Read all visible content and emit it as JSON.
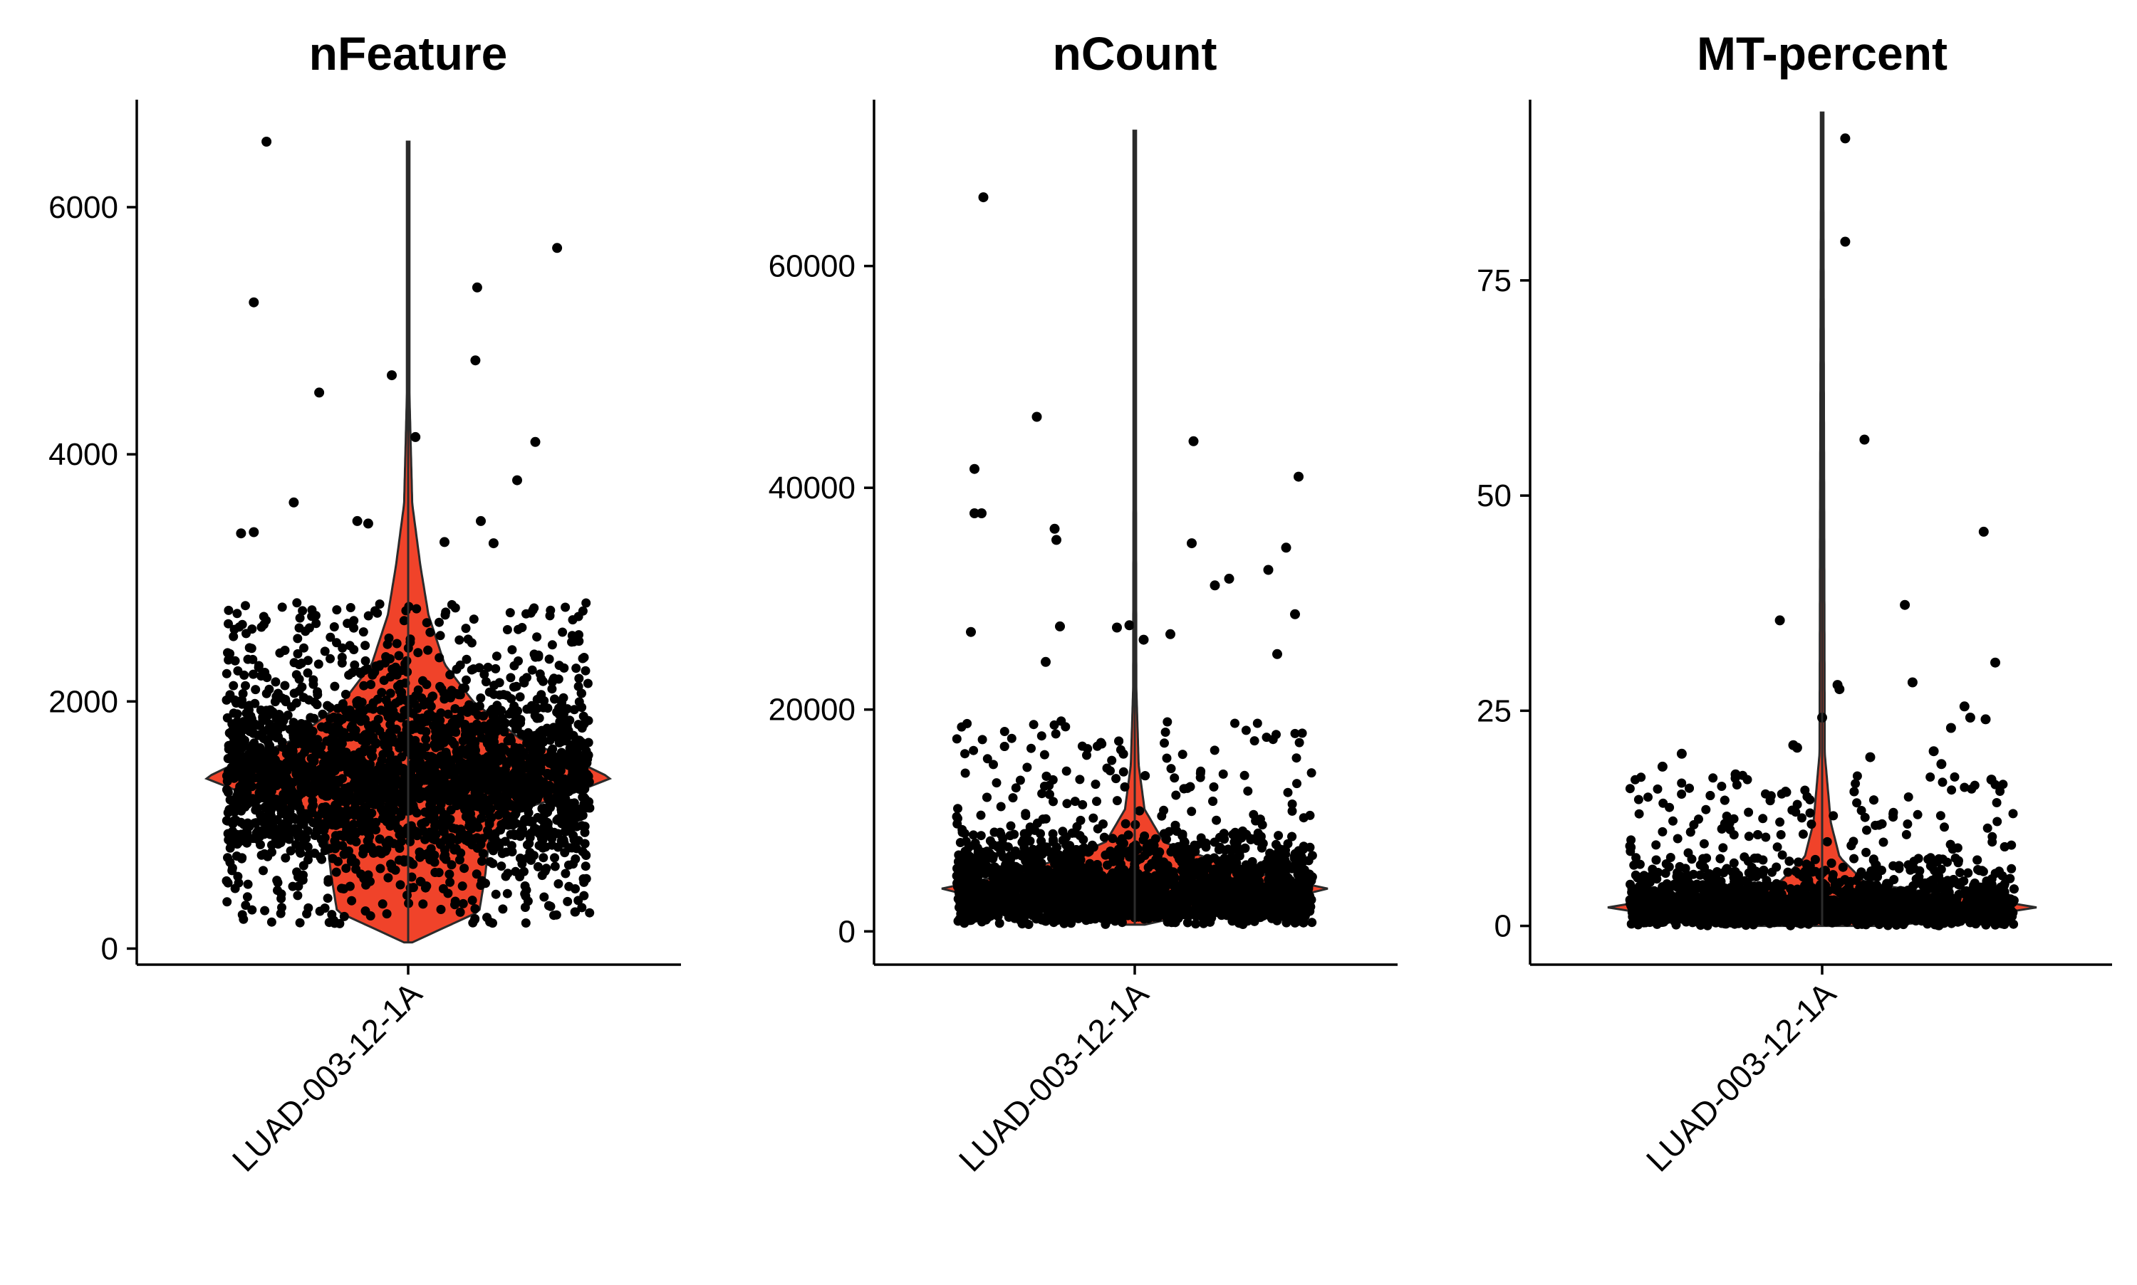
{
  "figure": {
    "colors": {
      "violin_fill": "#F0432A",
      "violin_stroke": "#2b2b2b",
      "points": "#000000",
      "axes": "#000000"
    }
  },
  "chart_data": [
    {
      "type": "violin",
      "title": "nFeature",
      "categories": [
        "LUAD-003-12-1A"
      ],
      "xlabel": "",
      "ylabel": "",
      "ylim": [
        -130,
        6870
      ],
      "yticks": [
        0,
        2000,
        4000,
        6000
      ],
      "tick_labels": [
        "0",
        "2000",
        "4000",
        "6000"
      ],
      "grid": false,
      "legend": "none",
      "summary": {
        "min": 50,
        "max": 6530,
        "mode": 1380,
        "bulk_range": [
          200,
          2800
        ]
      },
      "density": [
        [
          50,
          0.02
        ],
        [
          300,
          0.35
        ],
        [
          600,
          0.38
        ],
        [
          900,
          0.4
        ],
        [
          1100,
          0.5
        ],
        [
          1250,
          0.8
        ],
        [
          1380,
          1.0
        ],
        [
          1500,
          0.85
        ],
        [
          1700,
          0.55
        ],
        [
          2000,
          0.32
        ],
        [
          2300,
          0.18
        ],
        [
          2700,
          0.1
        ],
        [
          3100,
          0.06
        ],
        [
          3600,
          0.02
        ],
        [
          4500,
          0.006
        ],
        [
          6530,
          0.005
        ]
      ],
      "outliers": [
        {
          "x": -0.78,
          "y": 6530
        },
        {
          "x": -0.85,
          "y": 5230
        },
        {
          "x": -0.49,
          "y": 4500
        },
        {
          "x": -0.09,
          "y": 4640
        },
        {
          "x": 0.04,
          "y": 4140
        },
        {
          "x": 0.38,
          "y": 5350
        },
        {
          "x": 0.37,
          "y": 4760
        },
        {
          "x": 0.82,
          "y": 5670
        },
        {
          "x": 0.7,
          "y": 4100
        },
        {
          "x": 0.6,
          "y": 3790
        },
        {
          "x": -0.63,
          "y": 3610
        },
        {
          "x": 0.4,
          "y": 3460
        },
        {
          "x": -0.92,
          "y": 3360
        },
        {
          "x": -0.85,
          "y": 3370
        },
        {
          "x": 0.2,
          "y": 3290
        },
        {
          "x": -0.28,
          "y": 3460
        },
        {
          "x": -0.22,
          "y": 3440
        },
        {
          "x": 0.47,
          "y": 3280
        }
      ]
    },
    {
      "type": "violin",
      "title": "nCount",
      "categories": [
        "LUAD-003-12-1A"
      ],
      "xlabel": "",
      "ylabel": "",
      "ylim": [
        -3000,
        75000
      ],
      "yticks": [
        0,
        20000,
        40000,
        60000
      ],
      "tick_labels": [
        "0",
        "20000",
        "40000",
        "60000"
      ],
      "grid": false,
      "legend": "none",
      "summary": {
        "min": 600,
        "max": 72200,
        "mode": 3800,
        "bulk_range": [
          600,
          9000
        ]
      },
      "density": [
        [
          600,
          0.05
        ],
        [
          2000,
          0.4
        ],
        [
          3800,
          1.0
        ],
        [
          5500,
          0.55
        ],
        [
          8000,
          0.15
        ],
        [
          11000,
          0.05
        ],
        [
          15000,
          0.02
        ],
        [
          22000,
          0.008
        ],
        [
          72200,
          0.004
        ]
      ],
      "outliers": [
        {
          "x": -0.85,
          "y": 66200
        },
        {
          "x": -0.55,
          "y": 46400
        },
        {
          "x": -0.9,
          "y": 41700
        },
        {
          "x": -0.9,
          "y": 37700
        },
        {
          "x": -0.86,
          "y": 37700
        },
        {
          "x": -0.45,
          "y": 36300
        },
        {
          "x": -0.44,
          "y": 35300
        },
        {
          "x": 0.33,
          "y": 44200
        },
        {
          "x": 0.32,
          "y": 35000
        },
        {
          "x": 0.45,
          "y": 31200
        },
        {
          "x": 0.53,
          "y": 31800
        },
        {
          "x": 0.75,
          "y": 32600
        },
        {
          "x": 0.85,
          "y": 34600
        },
        {
          "x": 0.92,
          "y": 41000
        },
        {
          "x": 0.9,
          "y": 28600
        },
        {
          "x": -0.92,
          "y": 27000
        },
        {
          "x": -0.42,
          "y": 27500
        },
        {
          "x": -0.1,
          "y": 27400
        },
        {
          "x": -0.03,
          "y": 27600
        },
        {
          "x": 0.2,
          "y": 26800
        },
        {
          "x": 0.8,
          "y": 25000
        },
        {
          "x": 0.05,
          "y": 26300
        },
        {
          "x": -0.5,
          "y": 24300
        }
      ]
    },
    {
      "type": "violin",
      "title": "MT-percent",
      "categories": [
        "LUAD-003-12-1A"
      ],
      "xlabel": "",
      "ylabel": "",
      "ylim": [
        -4.5,
        96
      ],
      "yticks": [
        0,
        25,
        50,
        75
      ],
      "tick_labels": [
        "0",
        "25",
        "50",
        "75"
      ],
      "grid": false,
      "legend": "none",
      "summary": {
        "min": 0,
        "max": 94.5,
        "mode": 2.2,
        "bulk_range": [
          0,
          8
        ]
      },
      "density": [
        [
          0,
          0.3
        ],
        [
          1,
          0.7
        ],
        [
          2.2,
          1.0
        ],
        [
          3.5,
          0.6
        ],
        [
          5,
          0.2
        ],
        [
          8,
          0.08
        ],
        [
          12,
          0.04
        ],
        [
          20,
          0.012
        ],
        [
          94.5,
          0.005
        ]
      ],
      "outliers": [
        {
          "x": 0.12,
          "y": 91.5
        },
        {
          "x": 0.12,
          "y": 79.5
        },
        {
          "x": 0.22,
          "y": 56.5
        },
        {
          "x": 0.84,
          "y": 45.8
        },
        {
          "x": 0.43,
          "y": 37.3
        },
        {
          "x": -0.22,
          "y": 35.5
        },
        {
          "x": 0.9,
          "y": 30.6
        },
        {
          "x": 0.08,
          "y": 28.0
        },
        {
          "x": 0.09,
          "y": 27.5
        },
        {
          "x": 0.47,
          "y": 28.3
        },
        {
          "x": 0.74,
          "y": 25.5
        },
        {
          "x": 0.67,
          "y": 23.0
        },
        {
          "x": 0.85,
          "y": 24.0
        },
        {
          "x": 0.77,
          "y": 24.2
        },
        {
          "x": 0.0,
          "y": 24.2
        },
        {
          "x": -0.15,
          "y": 21.0
        },
        {
          "x": -0.13,
          "y": 20.7
        },
        {
          "x": -0.73,
          "y": 20.0
        },
        {
          "x": -0.83,
          "y": 18.5
        },
        {
          "x": 0.25,
          "y": 19.6
        },
        {
          "x": 0.58,
          "y": 20.3
        },
        {
          "x": 0.62,
          "y": 18.8
        },
        {
          "x": 0.88,
          "y": 17.0
        },
        {
          "x": -0.45,
          "y": 17.6
        }
      ]
    }
  ]
}
